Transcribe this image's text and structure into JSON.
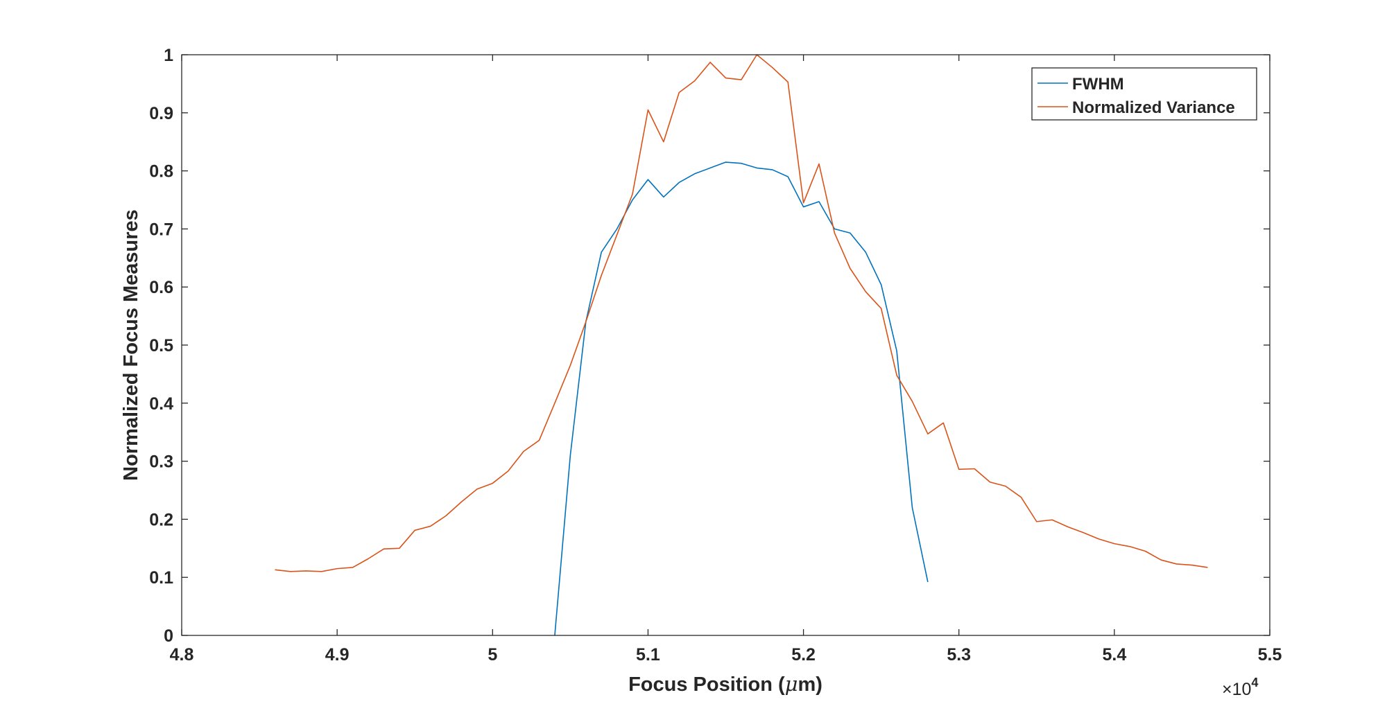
{
  "chart_data": {
    "type": "line",
    "title": "",
    "xlabel_prefix": "Focus Position (",
    "xlabel_mu": "μ",
    "xlabel_suffix": "m)",
    "ylabel": "Normalized Focus Measures",
    "x_exponent_base": "×10",
    "x_exponent_power": "4",
    "xlim": [
      48000,
      55000
    ],
    "ylim": [
      0,
      1
    ],
    "xticks": [
      48000,
      49000,
      50000,
      51000,
      52000,
      53000,
      54000,
      55000
    ],
    "xtick_labels": [
      "4.8",
      "4.9",
      "5",
      "5.1",
      "5.2",
      "5.3",
      "5.4",
      "5.5"
    ],
    "yticks": [
      0,
      0.1,
      0.2,
      0.3,
      0.4,
      0.5,
      0.6,
      0.7,
      0.8,
      0.9,
      1
    ],
    "ytick_labels": [
      "0",
      "0.1",
      "0.2",
      "0.3",
      "0.4",
      "0.5",
      "0.6",
      "0.7",
      "0.8",
      "0.9",
      "1"
    ],
    "grid": false,
    "legend_position": "top-right",
    "series": [
      {
        "name": "FWHM",
        "color": "#0072BD",
        "x": [
          50400,
          50500,
          50600,
          50700,
          50800,
          50900,
          51000,
          51100,
          51200,
          51300,
          51400,
          51500,
          51600,
          51700,
          51800,
          51900,
          52000,
          52100,
          52200,
          52300,
          52400,
          52500,
          52600,
          52700,
          52800
        ],
        "y": [
          0,
          0.31,
          0.54,
          0.66,
          0.7,
          0.75,
          0.785,
          0.755,
          0.78,
          0.795,
          0.805,
          0.815,
          0.813,
          0.805,
          0.802,
          0.79,
          0.738,
          0.747,
          0.7,
          0.693,
          0.66,
          0.604,
          0.49,
          0.22,
          0.092
        ]
      },
      {
        "name": "Normalized Variance",
        "color": "#D95319",
        "x": [
          48600,
          48700,
          48800,
          48900,
          49000,
          49100,
          49200,
          49300,
          49400,
          49500,
          49600,
          49700,
          49800,
          49900,
          50000,
          50100,
          50200,
          50300,
          50400,
          50500,
          50600,
          50700,
          50800,
          50900,
          51000,
          51100,
          51200,
          51300,
          51400,
          51500,
          51600,
          51700,
          51800,
          51900,
          52000,
          52100,
          52200,
          52300,
          52400,
          52500,
          52600,
          52700,
          52800,
          52900,
          53000,
          53100,
          53200,
          53300,
          53400,
          53500,
          53600,
          53700,
          53800,
          53900,
          54000,
          54100,
          54200,
          54300,
          54400,
          54500,
          54600
        ],
        "y": [
          0.113,
          0.11,
          0.111,
          0.11,
          0.115,
          0.117,
          0.132,
          0.149,
          0.15,
          0.181,
          0.188,
          0.206,
          0.23,
          0.252,
          0.262,
          0.283,
          0.317,
          0.336,
          0.4,
          0.465,
          0.54,
          0.62,
          0.69,
          0.76,
          0.905,
          0.85,
          0.935,
          0.955,
          0.987,
          0.96,
          0.957,
          1.0,
          0.978,
          0.953,
          0.745,
          0.812,
          0.693,
          0.632,
          0.592,
          0.563,
          0.448,
          0.403,
          0.347,
          0.366,
          0.286,
          0.287,
          0.264,
          0.257,
          0.238,
          0.196,
          0.199,
          0.187,
          0.177,
          0.166,
          0.158,
          0.153,
          0.145,
          0.13,
          0.123,
          0.121,
          0.117
        ]
      }
    ]
  }
}
